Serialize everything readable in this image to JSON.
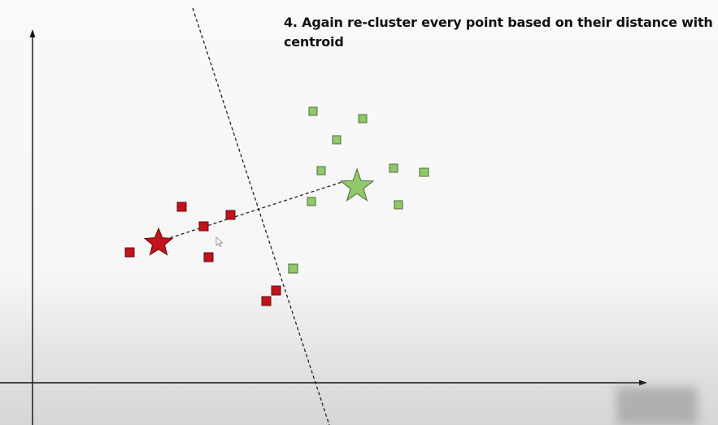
{
  "caption": {
    "line1": "4. Again re-cluster every point based on their distance with",
    "line2": "centroid"
  },
  "colors": {
    "red_cluster": "#c0131b",
    "green_cluster": "#8fc96a",
    "axis": "#111111",
    "divider": "#222222"
  },
  "icons": {
    "red_centroid": "star-icon",
    "green_centroid": "star-icon",
    "cursor": "mouse-cursor-icon"
  }
}
